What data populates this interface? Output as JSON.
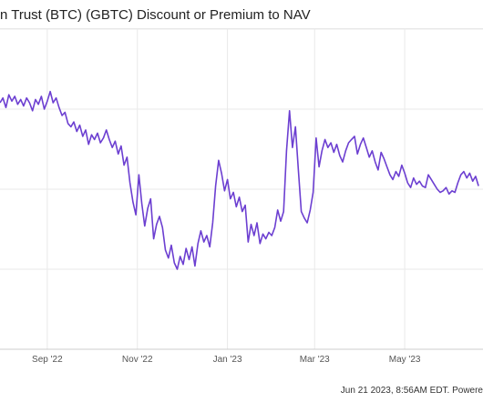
{
  "header": {
    "title": "n Trust (BTC) (GBTC) Discount or Premium to NAV"
  },
  "footer": {
    "text": "Jun 21 2023, 8:56AM EDT. Powere"
  },
  "colors": {
    "line": "#6c3fd1",
    "grid": "#e9e9e9",
    "axis": "#cccccc",
    "tick_text": "#555555"
  },
  "chart_data": {
    "type": "line",
    "x_tick_labels": [
      "Sep '22",
      "Nov '22",
      "Jan '23",
      "Mar '23",
      "May '23"
    ],
    "grid": true,
    "series": [
      {
        "x": [
          "2022-07-31",
          "2022-08-02",
          "2022-08-04",
          "2022-08-06",
          "2022-08-08",
          "2022-08-10",
          "2022-08-12",
          "2022-08-14",
          "2022-08-16",
          "2022-08-18",
          "2022-08-20",
          "2022-08-22",
          "2022-08-24",
          "2022-08-26",
          "2022-08-28",
          "2022-08-30",
          "2022-09-01",
          "2022-09-03",
          "2022-09-05",
          "2022-09-07",
          "2022-09-09",
          "2022-09-11",
          "2022-09-13",
          "2022-09-15",
          "2022-09-17",
          "2022-09-19",
          "2022-09-21",
          "2022-09-23",
          "2022-09-25",
          "2022-09-27",
          "2022-09-29",
          "2022-10-01",
          "2022-10-03",
          "2022-10-05",
          "2022-10-07",
          "2022-10-09",
          "2022-10-11",
          "2022-10-13",
          "2022-10-15",
          "2022-10-17",
          "2022-10-19",
          "2022-10-21",
          "2022-10-23",
          "2022-10-25",
          "2022-10-27",
          "2022-10-29",
          "2022-10-31",
          "2022-11-02",
          "2022-11-04",
          "2022-11-06",
          "2022-11-08",
          "2022-11-10",
          "2022-11-12",
          "2022-11-14",
          "2022-11-16",
          "2022-11-18",
          "2022-11-20",
          "2022-11-22",
          "2022-11-24",
          "2022-11-26",
          "2022-11-28",
          "2022-11-30",
          "2022-12-02",
          "2022-12-04",
          "2022-12-06",
          "2022-12-08",
          "2022-12-10",
          "2022-12-12",
          "2022-12-14",
          "2022-12-16",
          "2022-12-18",
          "2022-12-20",
          "2022-12-22",
          "2022-12-24",
          "2022-12-26",
          "2022-12-28",
          "2022-12-30",
          "2023-01-01",
          "2023-01-03",
          "2023-01-05",
          "2023-01-07",
          "2023-01-09",
          "2023-01-11",
          "2023-01-13",
          "2023-01-15",
          "2023-01-17",
          "2023-01-19",
          "2023-01-21",
          "2023-01-23",
          "2023-01-25",
          "2023-01-27",
          "2023-01-29",
          "2023-01-31",
          "2023-02-02",
          "2023-02-04",
          "2023-02-06",
          "2023-02-08",
          "2023-02-10",
          "2023-02-12",
          "2023-02-14",
          "2023-02-16",
          "2023-02-18",
          "2023-02-20",
          "2023-02-22",
          "2023-02-24",
          "2023-02-26",
          "2023-02-28",
          "2023-03-02",
          "2023-03-04",
          "2023-03-06",
          "2023-03-08",
          "2023-03-10",
          "2023-03-12",
          "2023-03-14",
          "2023-03-16",
          "2023-03-18",
          "2023-03-20",
          "2023-03-22",
          "2023-03-24",
          "2023-03-26",
          "2023-03-28",
          "2023-03-30",
          "2023-04-01",
          "2023-04-03",
          "2023-04-05",
          "2023-04-07",
          "2023-04-09",
          "2023-04-11",
          "2023-04-13",
          "2023-04-15",
          "2023-04-17",
          "2023-04-19",
          "2023-04-21",
          "2023-04-23",
          "2023-04-25",
          "2023-04-27",
          "2023-04-29",
          "2023-05-01",
          "2023-05-03",
          "2023-05-05",
          "2023-05-07",
          "2023-05-09",
          "2023-05-11",
          "2023-05-13",
          "2023-05-15",
          "2023-05-17",
          "2023-05-19",
          "2023-05-21",
          "2023-05-23",
          "2023-05-25",
          "2023-05-27",
          "2023-05-29",
          "2023-05-31",
          "2023-06-02",
          "2023-06-04",
          "2023-06-06",
          "2023-06-08",
          "2023-06-10",
          "2023-06-12",
          "2023-06-14",
          "2023-06-16",
          "2023-06-18",
          "2023-06-20"
        ],
        "values": [
          -29.6,
          -29.3,
          -29.9,
          -29.1,
          -29.5,
          -29.2,
          -29.7,
          -29.4,
          -29.8,
          -29.3,
          -29.6,
          -30.1,
          -29.4,
          -29.7,
          -29.2,
          -30.0,
          -29.5,
          -28.9,
          -29.6,
          -29.3,
          -29.9,
          -30.4,
          -30.2,
          -30.9,
          -31.1,
          -30.8,
          -31.4,
          -31.0,
          -31.7,
          -31.3,
          -32.2,
          -31.6,
          -31.9,
          -31.5,
          -32.1,
          -31.8,
          -31.3,
          -31.9,
          -32.4,
          -32.0,
          -32.8,
          -32.3,
          -33.5,
          -33.0,
          -34.6,
          -35.8,
          -36.6,
          -34.1,
          -35.9,
          -37.3,
          -36.2,
          -35.6,
          -38.1,
          -37.2,
          -36.7,
          -37.4,
          -38.8,
          -39.3,
          -38.5,
          -39.6,
          -40.0,
          -39.2,
          -39.7,
          -38.7,
          -39.4,
          -38.6,
          -39.8,
          -38.4,
          -37.6,
          -38.3,
          -37.9,
          -38.6,
          -37.1,
          -34.8,
          -33.2,
          -34.0,
          -35.1,
          -34.4,
          -35.6,
          -35.2,
          -36.1,
          -35.5,
          -36.4,
          -36.0,
          -38.3,
          -37.2,
          -37.9,
          -37.1,
          -38.4,
          -37.8,
          -38.1,
          -37.7,
          -37.9,
          -37.4,
          -36.3,
          -37.0,
          -36.4,
          -32.6,
          -30.1,
          -32.4,
          -31.1,
          -33.8,
          -36.4,
          -36.8,
          -37.1,
          -36.3,
          -35.2,
          -31.8,
          -33.6,
          -32.6,
          -31.9,
          -32.4,
          -32.1,
          -32.7,
          -32.2,
          -32.9,
          -33.3,
          -32.6,
          -32.1,
          -31.9,
          -31.7,
          -32.8,
          -32.2,
          -31.8,
          -32.4,
          -33.0,
          -32.6,
          -33.3,
          -33.8,
          -32.7,
          -33.1,
          -33.6,
          -34.1,
          -34.4,
          -33.9,
          -34.2,
          -33.5,
          -34.0,
          -34.6,
          -34.9,
          -34.3,
          -34.7,
          -34.5,
          -34.8,
          -34.9,
          -34.1,
          -34.4,
          -34.7,
          -35.0,
          -35.2,
          -35.1,
          -34.9,
          -35.3,
          -35.1,
          -35.2,
          -34.6,
          -34.1,
          -33.9,
          -34.3,
          -34.0,
          -34.5,
          -34.2,
          -34.8
        ]
      }
    ]
  }
}
